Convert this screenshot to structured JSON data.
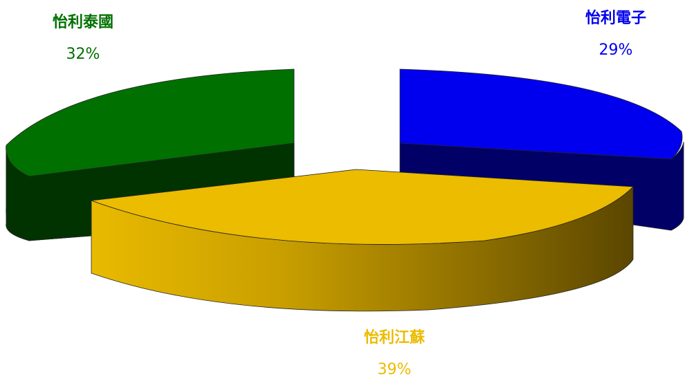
{
  "chart_data": {
    "type": "pie",
    "title": "",
    "style": "3d-exploded",
    "slices": [
      {
        "label": "怡利泰國",
        "value": 32,
        "value_label": "32%",
        "color": "#007000",
        "side_color": "#003300"
      },
      {
        "label": "怡利電子",
        "value": 29,
        "value_label": "29%",
        "color": "#0000ee",
        "side_color": "#000066"
      },
      {
        "label": "怡利江蘇",
        "value": 39,
        "value_label": "39%",
        "color": "#ebbc00",
        "side_color": "#9a7800"
      }
    ]
  }
}
